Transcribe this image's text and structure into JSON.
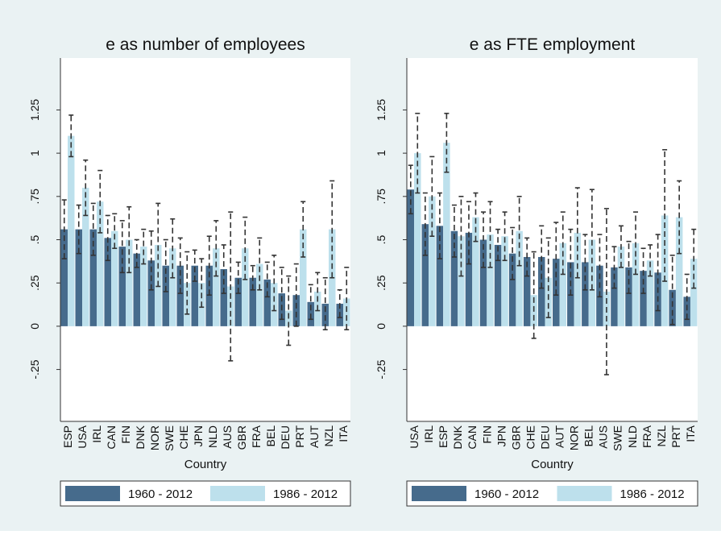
{
  "chart_data": [
    {
      "type": "bar",
      "title": "e as number of employees",
      "x_label": "Country",
      "categories": [
        "ESP",
        "USA",
        "IRL",
        "CAN",
        "FIN",
        "DNK",
        "NOR",
        "SWE",
        "CHE",
        "JPN",
        "NLD",
        "AUS",
        "GBR",
        "FRA",
        "BEL",
        "DEU",
        "PRT",
        "AUT",
        "NZL",
        "ITA"
      ],
      "series": [
        {
          "name": "1960 - 2012",
          "color": "#466b8c",
          "values": [
            0.56,
            0.56,
            0.56,
            0.51,
            0.46,
            0.42,
            0.38,
            0.35,
            0.35,
            0.35,
            0.35,
            0.33,
            0.28,
            0.28,
            0.27,
            0.19,
            0.18,
            0.14,
            0.13,
            0.13
          ],
          "errors": [
            0.17,
            0.14,
            0.15,
            0.13,
            0.15,
            0.08,
            0.17,
            0.15,
            0.16,
            0.09,
            0.17,
            0.14,
            0.09,
            0.07,
            0.1,
            0.15,
            0.18,
            0.1,
            0.15,
            0.08
          ]
        },
        {
          "name": "1986 - 2012",
          "color": "#bde0ec",
          "values": [
            1.1,
            0.8,
            0.72,
            0.55,
            0.5,
            0.46,
            0.47,
            0.45,
            0.25,
            0.25,
            0.45,
            0.23,
            0.45,
            0.36,
            0.25,
            0.09,
            0.56,
            0.2,
            0.56,
            0.16
          ],
          "errors": [
            0.12,
            0.16,
            0.18,
            0.1,
            0.19,
            0.1,
            0.24,
            0.17,
            0.18,
            0.14,
            0.16,
            0.43,
            0.18,
            0.15,
            0.16,
            0.2,
            0.16,
            0.11,
            0.28,
            0.18
          ]
        }
      ],
      "ylim": [
        -0.55,
        1.55
      ],
      "yticks": [
        {
          "value": -0.25,
          "label": "-.25"
        },
        0,
        {
          "value": 0.25,
          "label": ".25"
        },
        {
          "value": 0.5,
          "label": ".5"
        },
        {
          "value": 0.75,
          "label": ".75"
        },
        1,
        {
          "value": 1.25,
          "label": "1.25"
        }
      ]
    },
    {
      "type": "bar",
      "title": "e as FTE employment",
      "x_label": "Country",
      "categories": [
        "USA",
        "IRL",
        "ESP",
        "DNK",
        "CAN",
        "FIN",
        "JPN",
        "GBR",
        "CHE",
        "DEU",
        "AUT",
        "NOR",
        "BEL",
        "AUS",
        "SWE",
        "NLD",
        "FRA",
        "NZL",
        "PRT",
        "ITA"
      ],
      "series": [
        {
          "name": "1960 - 2012",
          "color": "#466b8c",
          "values": [
            0.79,
            0.59,
            0.58,
            0.55,
            0.54,
            0.5,
            0.47,
            0.42,
            0.4,
            0.4,
            0.39,
            0.37,
            0.37,
            0.35,
            0.34,
            0.34,
            0.32,
            0.31,
            0.21,
            0.17
          ],
          "errors": [
            0.14,
            0.18,
            0.19,
            0.15,
            0.18,
            0.16,
            0.09,
            0.15,
            0.11,
            0.18,
            0.21,
            0.19,
            0.16,
            0.18,
            0.12,
            0.15,
            0.13,
            0.22,
            0.2,
            0.13
          ]
        },
        {
          "name": "1986 - 2012",
          "color": "#bde0ec",
          "values": [
            1.0,
            0.75,
            1.06,
            0.52,
            0.63,
            0.53,
            0.52,
            0.55,
            0.18,
            0.28,
            0.48,
            0.54,
            0.5,
            0.2,
            0.46,
            0.48,
            0.38,
            0.64,
            0.63,
            0.39
          ],
          "errors": [
            0.23,
            0.23,
            0.17,
            0.23,
            0.14,
            0.19,
            0.14,
            0.2,
            0.25,
            0.23,
            0.18,
            0.26,
            0.29,
            0.48,
            0.12,
            0.18,
            0.09,
            0.38,
            0.21,
            0.17
          ]
        }
      ],
      "ylim": [
        -0.55,
        1.55
      ],
      "yticks": [
        {
          "value": -0.25,
          "label": "-.25"
        },
        0,
        {
          "value": 0.25,
          "label": ".25"
        },
        {
          "value": 0.5,
          "label": ".5"
        },
        {
          "value": 0.75,
          "label": ".75"
        },
        1,
        {
          "value": 1.25,
          "label": "1.25"
        }
      ]
    }
  ]
}
